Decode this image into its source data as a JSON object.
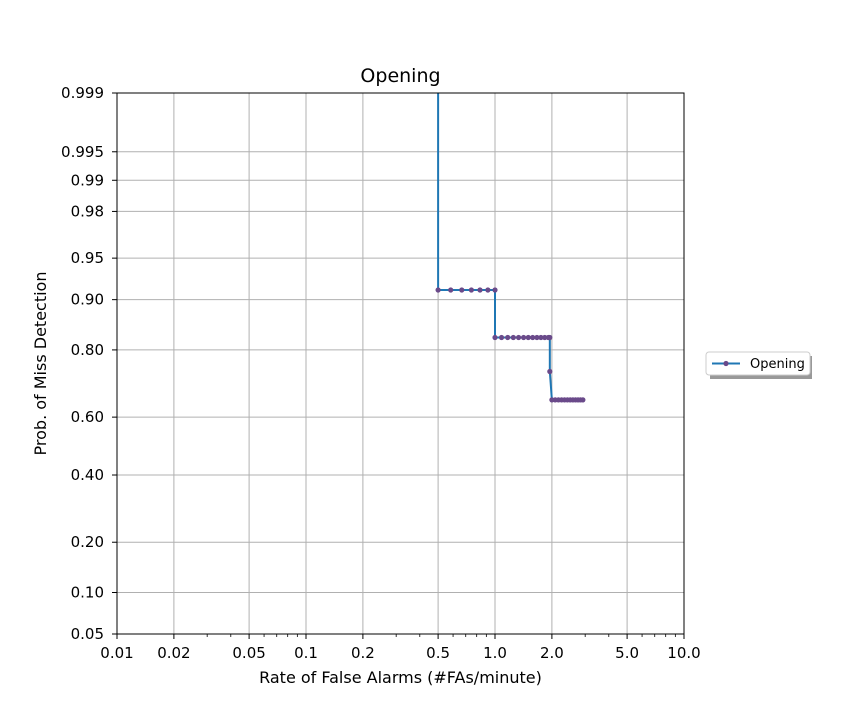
{
  "chart_data": {
    "type": "line",
    "title": "Opening",
    "xlabel": "Rate of False Alarms (#FAs/minute)",
    "ylabel": "Prob. of Miss Detection",
    "x_scale": "log",
    "y_scale": "probit",
    "xlim": [
      0.01,
      10.0
    ],
    "ylim": [
      0.05,
      0.999
    ],
    "x_ticks": [
      0.01,
      0.02,
      0.05,
      0.1,
      0.2,
      0.5,
      1.0,
      2.0,
      5.0,
      10.0
    ],
    "x_tick_labels": [
      "0.01",
      "0.02",
      "0.05",
      "0.1",
      "0.2",
      "0.5",
      "1.0",
      "2.0",
      "5.0",
      "10.0"
    ],
    "y_ticks": [
      0.05,
      0.1,
      0.2,
      0.4,
      0.6,
      0.8,
      0.9,
      0.95,
      0.98,
      0.99,
      0.995,
      0.999
    ],
    "y_tick_labels": [
      "0.05",
      "0.10",
      "0.20",
      "0.40",
      "0.60",
      "0.80",
      "0.90",
      "0.95",
      "0.98",
      "0.99",
      "0.995",
      "0.999"
    ],
    "grid": true,
    "legend": {
      "placement": "right",
      "entries": [
        "Opening"
      ]
    },
    "series": [
      {
        "name": "Opening",
        "color": "#1f77b4",
        "marker_color": "#6a4a8a",
        "points": [
          {
            "x": 0.5,
            "y": 0.999
          },
          {
            "x": 0.5,
            "y": 0.914
          },
          {
            "x": 0.583,
            "y": 0.914
          },
          {
            "x": 0.667,
            "y": 0.914
          },
          {
            "x": 0.75,
            "y": 0.914
          },
          {
            "x": 0.833,
            "y": 0.914
          },
          {
            "x": 0.917,
            "y": 0.914
          },
          {
            "x": 1.0,
            "y": 0.914
          },
          {
            "x": 1.0,
            "y": 0.829
          },
          {
            "x": 1.083,
            "y": 0.829
          },
          {
            "x": 1.167,
            "y": 0.829
          },
          {
            "x": 1.25,
            "y": 0.829
          },
          {
            "x": 1.333,
            "y": 0.829
          },
          {
            "x": 1.417,
            "y": 0.829
          },
          {
            "x": 1.5,
            "y": 0.829
          },
          {
            "x": 1.583,
            "y": 0.829
          },
          {
            "x": 1.667,
            "y": 0.829
          },
          {
            "x": 1.75,
            "y": 0.829
          },
          {
            "x": 1.833,
            "y": 0.829
          },
          {
            "x": 1.917,
            "y": 0.829
          },
          {
            "x": 1.95,
            "y": 0.829
          },
          {
            "x": 1.95,
            "y": 0.743
          },
          {
            "x": 2.0,
            "y": 0.657
          },
          {
            "x": 2.083,
            "y": 0.657
          },
          {
            "x": 2.167,
            "y": 0.657
          },
          {
            "x": 2.25,
            "y": 0.657
          },
          {
            "x": 2.333,
            "y": 0.657
          },
          {
            "x": 2.417,
            "y": 0.657
          },
          {
            "x": 2.5,
            "y": 0.657
          },
          {
            "x": 2.583,
            "y": 0.657
          },
          {
            "x": 2.667,
            "y": 0.657
          },
          {
            "x": 2.75,
            "y": 0.657
          },
          {
            "x": 2.833,
            "y": 0.657
          },
          {
            "x": 2.917,
            "y": 0.657
          }
        ]
      }
    ]
  }
}
